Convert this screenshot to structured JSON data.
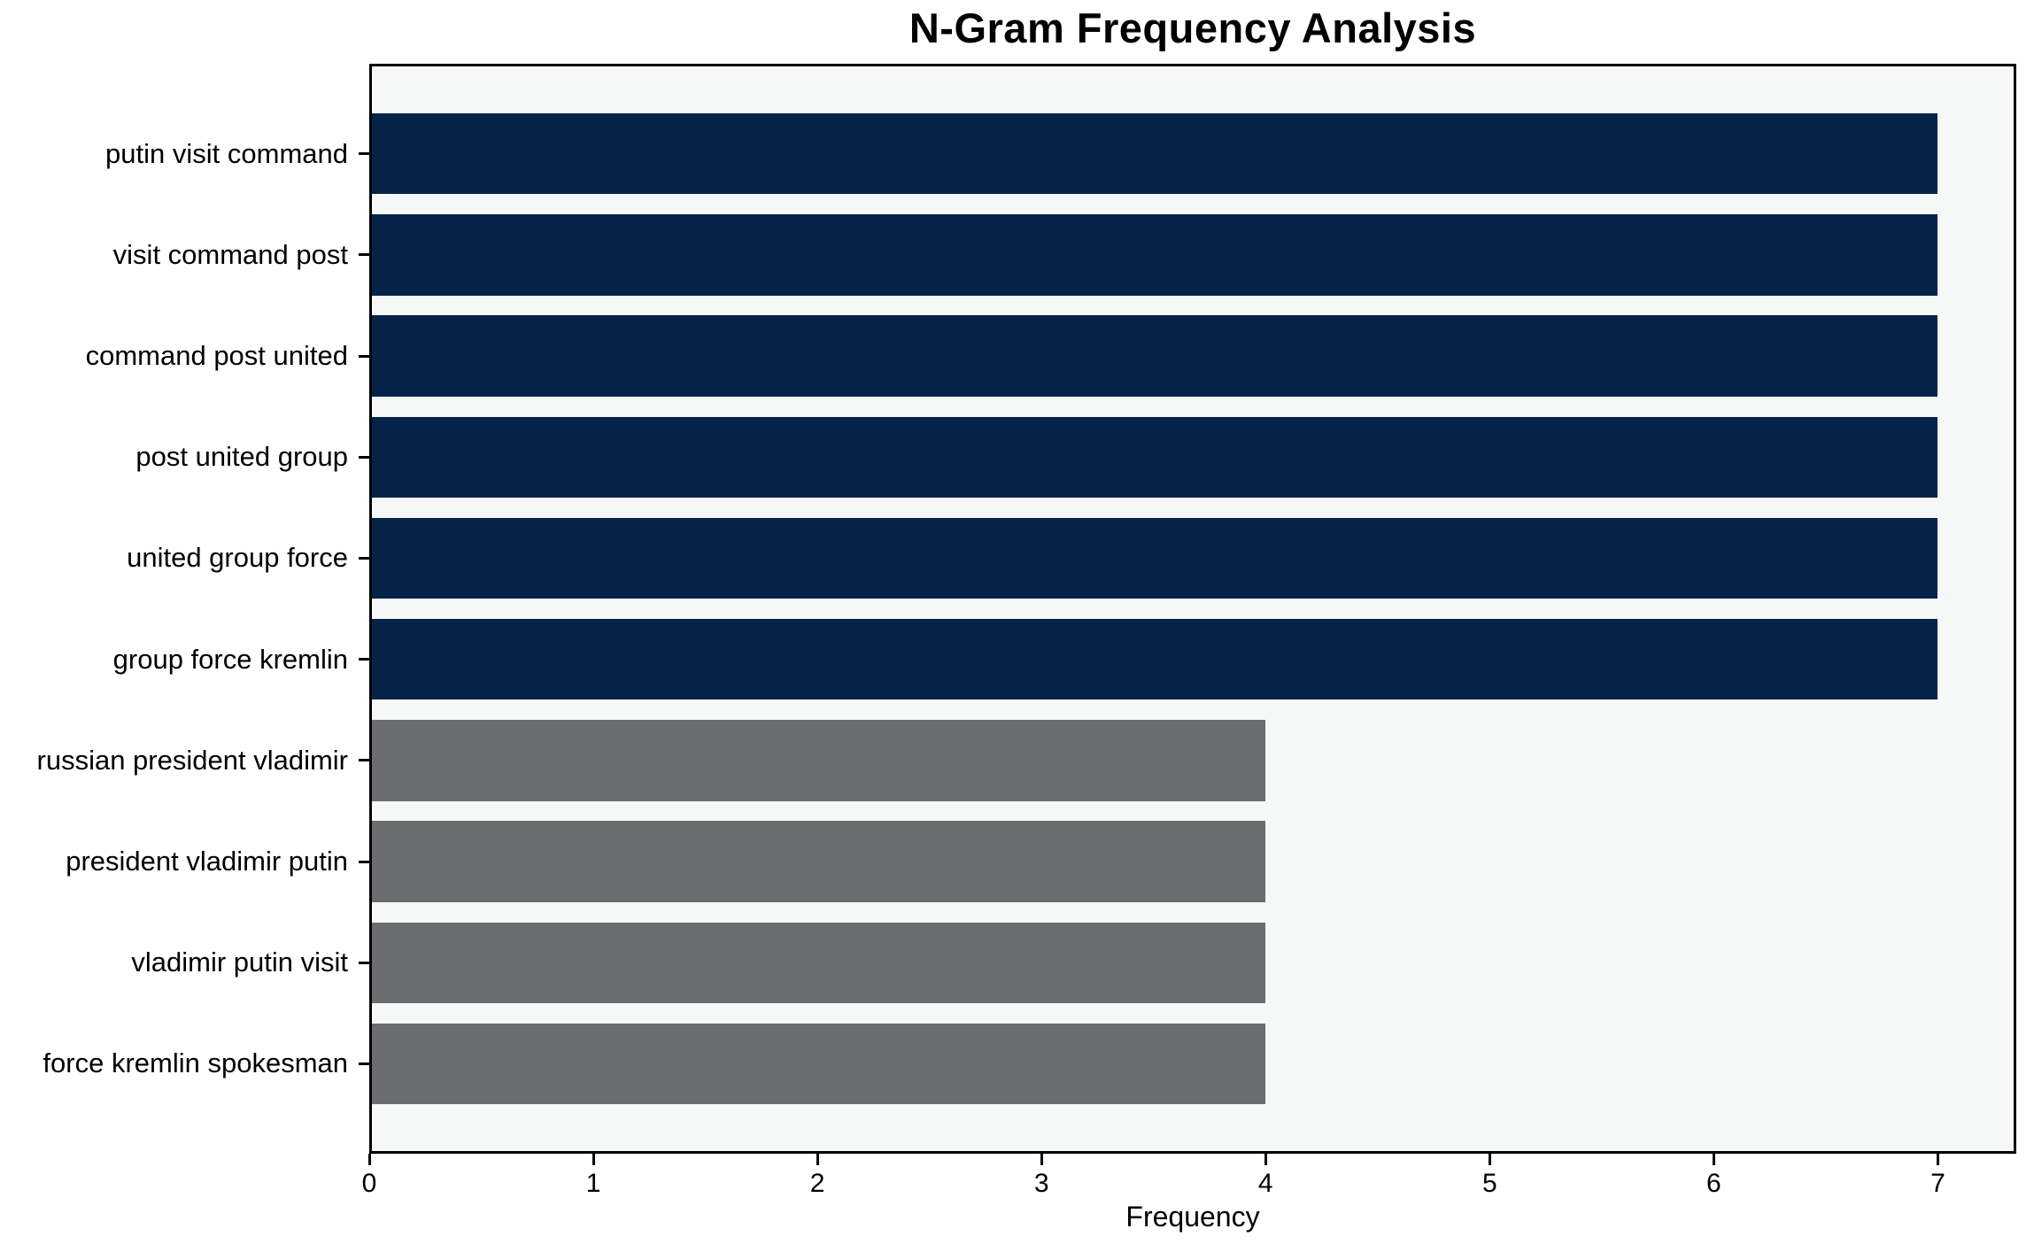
{
  "chart_data": {
    "type": "bar",
    "orientation": "horizontal",
    "title": "N-Gram Frequency Analysis",
    "xlabel": "Frequency",
    "ylabel": "",
    "categories": [
      "putin visit command",
      "visit command post",
      "command post united",
      "post united group",
      "united group force",
      "group force kremlin",
      "russian president vladimir",
      "president vladimir putin",
      "vladimir putin visit",
      "force kremlin spokesman"
    ],
    "values": [
      7,
      7,
      7,
      7,
      7,
      7,
      4,
      4,
      4,
      4
    ],
    "bar_colors": [
      "#052349",
      "#052349",
      "#052349",
      "#052349",
      "#052349",
      "#052349",
      "#6b6d70",
      "#6b6d70",
      "#6b6d70",
      "#6b6d70"
    ],
    "xticks": [
      0,
      1,
      2,
      3,
      4,
      5,
      6,
      7
    ],
    "xlim": [
      0,
      7.35
    ],
    "grid": false,
    "legend": null
  },
  "colors": {
    "navy_bar": "#052349",
    "gray_bar": "#6b6d70",
    "plot_background": "#f6f7f7",
    "figure_background": "#ffffff",
    "axis": "#000000",
    "text": "#000000"
  }
}
